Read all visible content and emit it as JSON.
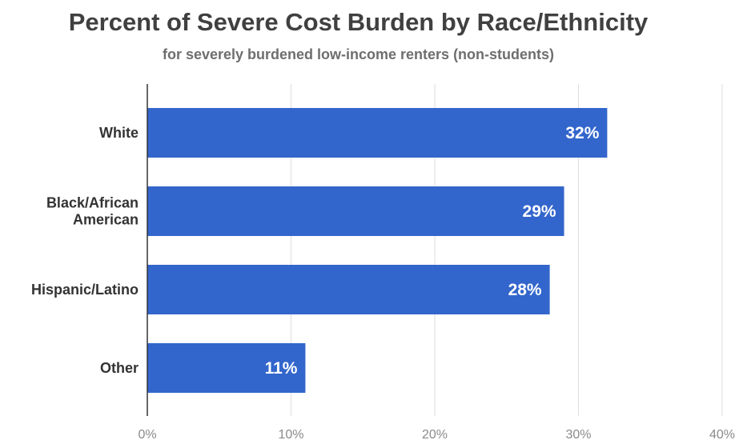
{
  "chart_data": {
    "type": "bar",
    "orientation": "horizontal",
    "title": "Percent of Severe Cost Burden by Race/Ethnicity",
    "subtitle": "for severely burdened low-income renters (non-students)",
    "categories": [
      [
        "White"
      ],
      [
        "Black/African",
        "American"
      ],
      [
        "Hispanic/Latino"
      ],
      [
        "Other"
      ]
    ],
    "values": [
      32,
      29,
      28,
      11
    ],
    "data_labels": [
      "32%",
      "29%",
      "28%",
      "11%"
    ],
    "xlim": [
      0,
      40
    ],
    "xticks": [
      0,
      10,
      20,
      30,
      40
    ],
    "xtick_labels": [
      "0%",
      "10%",
      "20%",
      "30%",
      "40%"
    ],
    "grid": true,
    "legend": "none",
    "bar_color": "#3366cc",
    "grid_color": "#dcdcdc",
    "axis_color": "#333333"
  }
}
